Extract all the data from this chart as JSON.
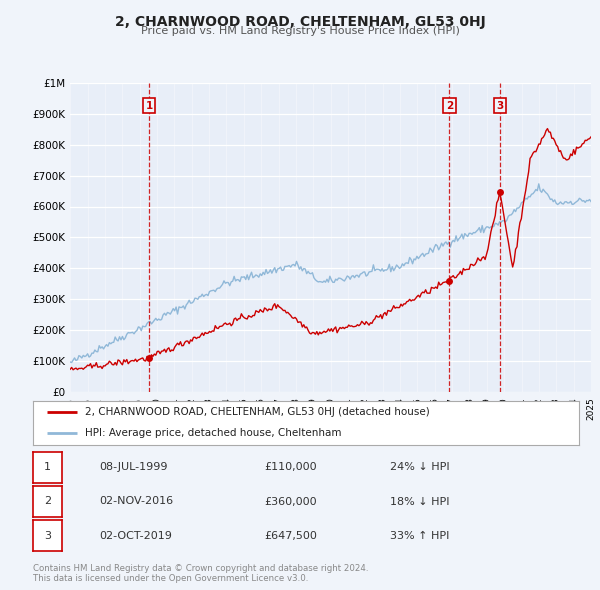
{
  "title": "2, CHARNWOOD ROAD, CHELTENHAM, GL53 0HJ",
  "subtitle": "Price paid vs. HM Land Registry's House Price Index (HPI)",
  "legend_line1": "2, CHARNWOOD ROAD, CHELTENHAM, GL53 0HJ (detached house)",
  "legend_line2": "HPI: Average price, detached house, Cheltenham",
  "sale_color": "#cc0000",
  "hpi_color": "#90b8d8",
  "background_color": "#f0f4fa",
  "plot_bg": "#e8eef8",
  "grid_color": "#c8d4e8",
  "sales": [
    {
      "label": "1",
      "date": "08-JUL-1999",
      "year": 1999.54,
      "price": 110000,
      "pct": "24% ↓ HPI"
    },
    {
      "label": "2",
      "date": "02-NOV-2016",
      "year": 2016.84,
      "price": 360000,
      "pct": "18% ↓ HPI"
    },
    {
      "label": "3",
      "date": "02-OCT-2019",
      "year": 2019.75,
      "price": 647500,
      "pct": "33% ↑ HPI"
    }
  ],
  "footer1": "Contains HM Land Registry data © Crown copyright and database right 2024.",
  "footer2": "This data is licensed under the Open Government Licence v3.0.",
  "ylim": [
    0,
    1000000
  ],
  "yticks": [
    0,
    100000,
    200000,
    300000,
    400000,
    500000,
    600000,
    700000,
    800000,
    900000,
    1000000
  ],
  "ytick_labels": [
    "£0",
    "£100K",
    "£200K",
    "£300K",
    "£400K",
    "£500K",
    "£600K",
    "£700K",
    "£800K",
    "£900K",
    "£1M"
  ],
  "xmin": 1995,
  "xmax": 2025
}
